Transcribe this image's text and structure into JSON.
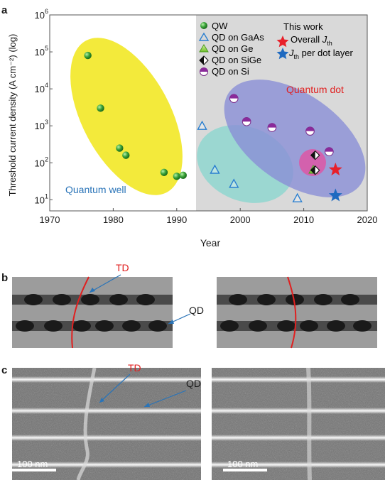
{
  "panels": {
    "a": "a",
    "b": "b",
    "c": "c"
  },
  "chart_data": {
    "type": "scatter",
    "title": "",
    "xlabel": "Year",
    "ylabel": "Threshold current density (A cm⁻²) (log)",
    "xlim": [
      1970,
      2020
    ],
    "ylim": [
      5,
      1000000
    ],
    "y_scale": "log",
    "x_ticks": [
      "1970",
      "1980",
      "1990",
      "2000",
      "2010",
      "2020"
    ],
    "y_ticks": [
      {
        "base": "10",
        "exp": "1"
      },
      {
        "base": "10",
        "exp": "2"
      },
      {
        "base": "10",
        "exp": "3"
      },
      {
        "base": "10",
        "exp": "4"
      },
      {
        "base": "10",
        "exp": "5"
      },
      {
        "base": "10",
        "exp": "6"
      }
    ],
    "region_labels": {
      "quantum_well": "Quantum well",
      "quantum_dot": "Quantum dot"
    },
    "legend": {
      "placement": "top-right",
      "header": "This work",
      "entries": [
        "QW",
        "QD on GaAs",
        "QD on Ge",
        "QD on SiGe",
        "QD on Si"
      ],
      "this_work": [
        {
          "text": "Overall ",
          "sym": "J",
          "sub": "th",
          "after": ""
        },
        {
          "text": "",
          "sym": "J",
          "sub": "th",
          "after": " per dot layer"
        }
      ]
    },
    "series": [
      {
        "name": "QW",
        "marker": "green-sphere",
        "x": [
          1976,
          1978,
          1981,
          1982,
          1988,
          1990,
          1991
        ],
        "y": [
          80000,
          3000,
          250,
          160,
          55,
          43,
          46
        ]
      },
      {
        "name": "QD on GaAs",
        "marker": "blue-open-triangle",
        "x": [
          1994,
          1996,
          1999,
          2009
        ],
        "y": [
          1000,
          65,
          27,
          11
        ]
      },
      {
        "name": "QD on Ge",
        "marker": "green-triangle",
        "x": [
          2011.5
        ],
        "y": [
          65
        ]
      },
      {
        "name": "QD on SiGe",
        "marker": "black-white-diamond",
        "x": [
          2011.8,
          2011.8
        ],
        "y": [
          160,
          63
        ]
      },
      {
        "name": "QD on Si",
        "marker": "purple-half-circle",
        "x": [
          1999,
          2001,
          2005,
          2011,
          2014
        ],
        "y": [
          5500,
          1300,
          900,
          720,
          200
        ]
      },
      {
        "name": "Overall Jth",
        "marker": "red-star",
        "x": [
          2015
        ],
        "y": [
          65
        ]
      },
      {
        "name": "Jth per dot layer",
        "marker": "blue-star",
        "x": [
          2015
        ],
        "y": [
          13
        ]
      }
    ]
  },
  "schematic": {
    "td_label": "TD",
    "qd_label": "QD"
  },
  "micrographs": {
    "td_label": "TD",
    "qd_label": "QD",
    "scale_bar": "100 nm"
  }
}
